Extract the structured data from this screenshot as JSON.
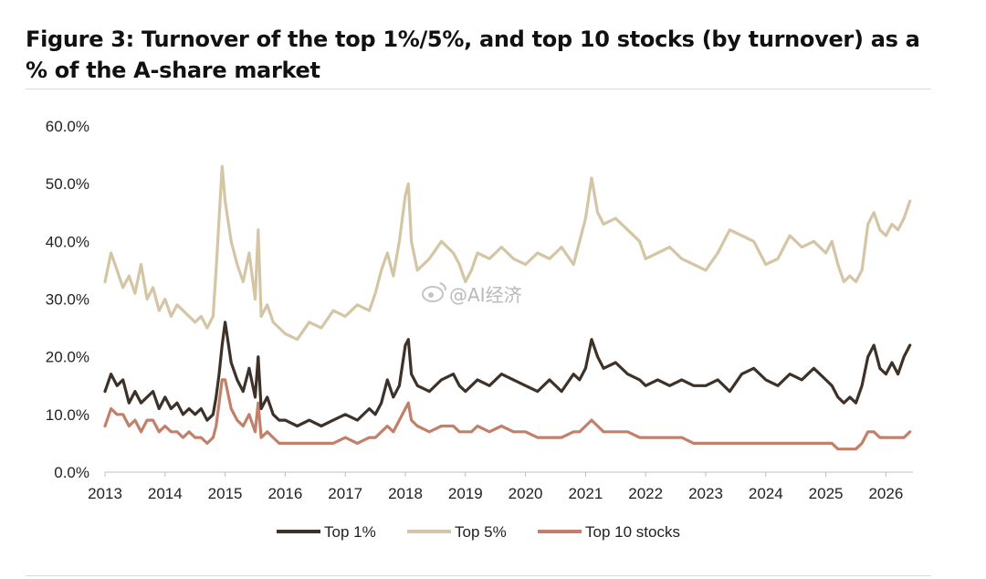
{
  "chart_data": {
    "type": "line",
    "title": "Figure 3: Turnover of the top 1%/5%, and top 10 stocks (by turnover) as a % of the A-share market",
    "xlabel": "",
    "ylabel": "",
    "xlim": [
      2013.0,
      2026.45
    ],
    "ylim": [
      0,
      60
    ],
    "y_ticks": [
      "0.0%",
      "10.0%",
      "20.0%",
      "30.0%",
      "40.0%",
      "50.0%",
      "60.0%"
    ],
    "x_ticks": [
      "2013",
      "2014",
      "2015",
      "2016",
      "2017",
      "2018",
      "2019",
      "2020",
      "2021",
      "2022",
      "2023",
      "2024",
      "2025",
      "2026"
    ],
    "grid": false,
    "legend_position": "bottom-center",
    "x": [
      2013.0,
      2013.1,
      2013.2,
      2013.3,
      2013.4,
      2013.5,
      2013.6,
      2013.7,
      2013.8,
      2013.9,
      2014.0,
      2014.1,
      2014.2,
      2014.3,
      2014.4,
      2014.5,
      2014.6,
      2014.7,
      2014.8,
      2014.85,
      2014.9,
      2014.95,
      2015.0,
      2015.1,
      2015.2,
      2015.3,
      2015.4,
      2015.5,
      2015.55,
      2015.6,
      2015.7,
      2015.8,
      2015.9,
      2016.0,
      2016.2,
      2016.4,
      2016.6,
      2016.8,
      2017.0,
      2017.2,
      2017.4,
      2017.5,
      2017.6,
      2017.7,
      2017.8,
      2017.9,
      2018.0,
      2018.05,
      2018.1,
      2018.2,
      2018.4,
      2018.6,
      2018.8,
      2018.9,
      2019.0,
      2019.1,
      2019.2,
      2019.4,
      2019.6,
      2019.8,
      2020.0,
      2020.2,
      2020.4,
      2020.6,
      2020.8,
      2020.9,
      2021.0,
      2021.1,
      2021.2,
      2021.3,
      2021.5,
      2021.7,
      2021.9,
      2022.0,
      2022.2,
      2022.4,
      2022.6,
      2022.8,
      2023.0,
      2023.2,
      2023.4,
      2023.6,
      2023.8,
      2024.0,
      2024.2,
      2024.4,
      2024.6,
      2024.8,
      2025.0,
      2025.1,
      2025.2,
      2025.3,
      2025.4,
      2025.5,
      2025.6,
      2025.7,
      2025.8,
      2025.9,
      2026.0,
      2026.1,
      2026.2,
      2026.3,
      2026.4
    ],
    "series": [
      {
        "name": "Top 1%",
        "color": "#3d3128",
        "values": [
          14,
          17,
          15,
          16,
          12,
          14,
          12,
          13,
          14,
          11,
          13,
          11,
          12,
          10,
          11,
          10,
          11,
          9,
          10,
          13,
          17,
          22,
          26,
          19,
          16,
          14,
          18,
          13,
          20,
          11,
          13,
          10,
          9,
          9,
          8,
          9,
          8,
          9,
          10,
          9,
          11,
          10,
          12,
          16,
          13,
          15,
          22,
          23,
          17,
          15,
          14,
          16,
          17,
          15,
          14,
          15,
          16,
          15,
          17,
          16,
          15,
          14,
          16,
          14,
          17,
          16,
          18,
          23,
          20,
          18,
          19,
          17,
          16,
          15,
          16,
          15,
          16,
          15,
          15,
          16,
          14,
          17,
          18,
          16,
          15,
          17,
          16,
          18,
          16,
          15,
          13,
          12,
          13,
          12,
          15,
          20,
          22,
          18,
          17,
          19,
          17,
          20,
          22
        ]
      },
      {
        "name": "Top 5%",
        "color": "#d4c5a5",
        "values": [
          33,
          38,
          35,
          32,
          34,
          31,
          36,
          30,
          32,
          28,
          30,
          27,
          29,
          28,
          27,
          26,
          27,
          25,
          27,
          35,
          44,
          53,
          47,
          40,
          36,
          33,
          38,
          30,
          42,
          27,
          29,
          26,
          25,
          24,
          23,
          26,
          25,
          28,
          27,
          29,
          28,
          31,
          35,
          38,
          34,
          40,
          48,
          50,
          40,
          35,
          37,
          40,
          38,
          36,
          33,
          35,
          38,
          37,
          39,
          37,
          36,
          38,
          37,
          39,
          36,
          40,
          44,
          51,
          45,
          43,
          44,
          42,
          40,
          37,
          38,
          39,
          37,
          36,
          35,
          38,
          42,
          41,
          40,
          36,
          37,
          41,
          39,
          40,
          38,
          40,
          36,
          33,
          34,
          33,
          35,
          43,
          45,
          42,
          41,
          43,
          42,
          44,
          47
        ]
      },
      {
        "name": "Top 10 stocks",
        "color": "#c2806a",
        "values": [
          8,
          11,
          10,
          10,
          8,
          9,
          7,
          9,
          9,
          7,
          8,
          7,
          7,
          6,
          7,
          6,
          6,
          5,
          6,
          8,
          12,
          16,
          16,
          11,
          9,
          8,
          10,
          7,
          12,
          6,
          7,
          6,
          5,
          5,
          5,
          5,
          5,
          5,
          6,
          5,
          6,
          6,
          7,
          8,
          7,
          9,
          11,
          12,
          9,
          8,
          7,
          8,
          8,
          7,
          7,
          7,
          8,
          7,
          8,
          7,
          7,
          6,
          6,
          6,
          7,
          7,
          8,
          9,
          8,
          7,
          7,
          7,
          6,
          6,
          6,
          6,
          6,
          5,
          5,
          5,
          5,
          5,
          5,
          5,
          5,
          5,
          5,
          5,
          5,
          5,
          4,
          4,
          4,
          4,
          5,
          7,
          7,
          6,
          6,
          6,
          6,
          6,
          7
        ]
      }
    ]
  },
  "watermark": "@AI经济"
}
